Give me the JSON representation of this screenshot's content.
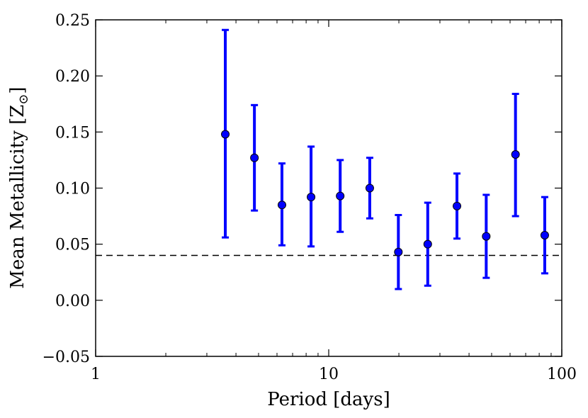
{
  "chart_data": {
    "type": "scatter",
    "title": "",
    "xlabel": "Period [days]",
    "ylabel": "Mean Metallicity [Z",
    "ylabel_sub": "⊙",
    "ylabel_close": "]",
    "x_scale": "log",
    "xlim": [
      1,
      100
    ],
    "ylim": [
      -0.05,
      0.25
    ],
    "x_ticks": [
      1,
      10,
      100
    ],
    "x_tick_labels": [
      "1",
      "10",
      "100"
    ],
    "y_ticks": [
      -0.05,
      0.0,
      0.05,
      0.1,
      0.15,
      0.2,
      0.25
    ],
    "y_tick_labels": [
      "−0.05",
      "0.00",
      "0.05",
      "0.10",
      "0.15",
      "0.20",
      "0.25"
    ],
    "grid": false,
    "legend": "none",
    "reference_line": {
      "y": 0.04,
      "style": "dashed",
      "color": "#000000"
    },
    "series": [
      {
        "color": "#0000ff",
        "points": [
          {
            "x": 3.6,
            "y": 0.148,
            "lo": 0.056,
            "hi": 0.241
          },
          {
            "x": 4.8,
            "y": 0.127,
            "lo": 0.08,
            "hi": 0.174
          },
          {
            "x": 6.3,
            "y": 0.085,
            "lo": 0.049,
            "hi": 0.122
          },
          {
            "x": 8.4,
            "y": 0.092,
            "lo": 0.048,
            "hi": 0.137
          },
          {
            "x": 11.2,
            "y": 0.093,
            "lo": 0.061,
            "hi": 0.125
          },
          {
            "x": 15.0,
            "y": 0.1,
            "lo": 0.073,
            "hi": 0.127
          },
          {
            "x": 19.9,
            "y": 0.043,
            "lo": 0.01,
            "hi": 0.076
          },
          {
            "x": 26.6,
            "y": 0.05,
            "lo": 0.013,
            "hi": 0.087
          },
          {
            "x": 35.5,
            "y": 0.084,
            "lo": 0.055,
            "hi": 0.113
          },
          {
            "x": 47.4,
            "y": 0.057,
            "lo": 0.02,
            "hi": 0.094
          },
          {
            "x": 63.3,
            "y": 0.13,
            "lo": 0.075,
            "hi": 0.184
          },
          {
            "x": 84.5,
            "y": 0.058,
            "lo": 0.024,
            "hi": 0.092
          }
        ]
      }
    ]
  }
}
